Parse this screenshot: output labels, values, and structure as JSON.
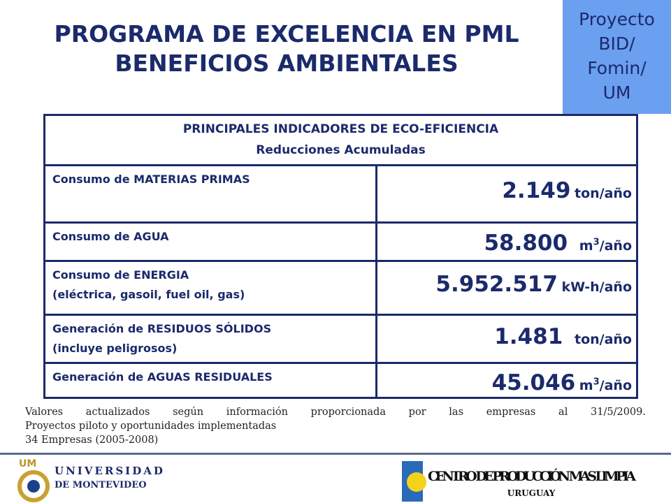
{
  "header": {
    "title_lines": [
      "PROGRAMA DE EXCELENCIA EN PML",
      "BENEFICIOS AMBIENTALES"
    ],
    "badge_lines": [
      "Proyecto",
      "BID/",
      "Fomin/",
      "UM"
    ]
  },
  "table": {
    "header_lines": [
      "PRINCIPALES INDICADORES DE ECO-EFICIENCIA",
      "Reducciones Acumuladas"
    ],
    "rows": [
      {
        "label_lines": [
          "Consumo de MATERIAS PRIMAS"
        ],
        "value": "2.149",
        "unit": "ton/año"
      },
      {
        "label_lines": [
          "Consumo de AGUA"
        ],
        "value": "58.800",
        "unit_base": "m",
        "unit_sup": "3",
        "unit_rest": "/año"
      },
      {
        "label_lines": [
          "Consumo de ENERGIA",
          "(eléctrica, gasoil, fuel oil, gas)"
        ],
        "value": "5.952.517",
        "unit": "kW-h/año"
      },
      {
        "label_lines": [
          "Generación de RESIDUOS SÓLIDOS",
          "(incluye peligrosos)"
        ],
        "value": "1.481",
        "unit": "ton/año"
      },
      {
        "label_lines": [
          "Generación de AGUAS RESIDUALES"
        ],
        "value": "45.046",
        "unit_base": "m",
        "unit_sup": "3",
        "unit_rest": "/año"
      }
    ]
  },
  "notes": [
    "Valores actualizados según información proporcionada por las empresas al 31/5/2009.",
    "Proyectos piloto y oportunidades implementadas",
    "34 Empresas (2005-2008)"
  ],
  "footer": {
    "left_logo": {
      "mark": "UM",
      "lines": [
        "UNIVERSIDAD",
        "DE MONTEVIDEO"
      ]
    },
    "right_logo": {
      "lines": [
        "CENTRO DE PRODUCCIÓN MAS LIMPIA",
        "URUGUAY"
      ]
    }
  }
}
